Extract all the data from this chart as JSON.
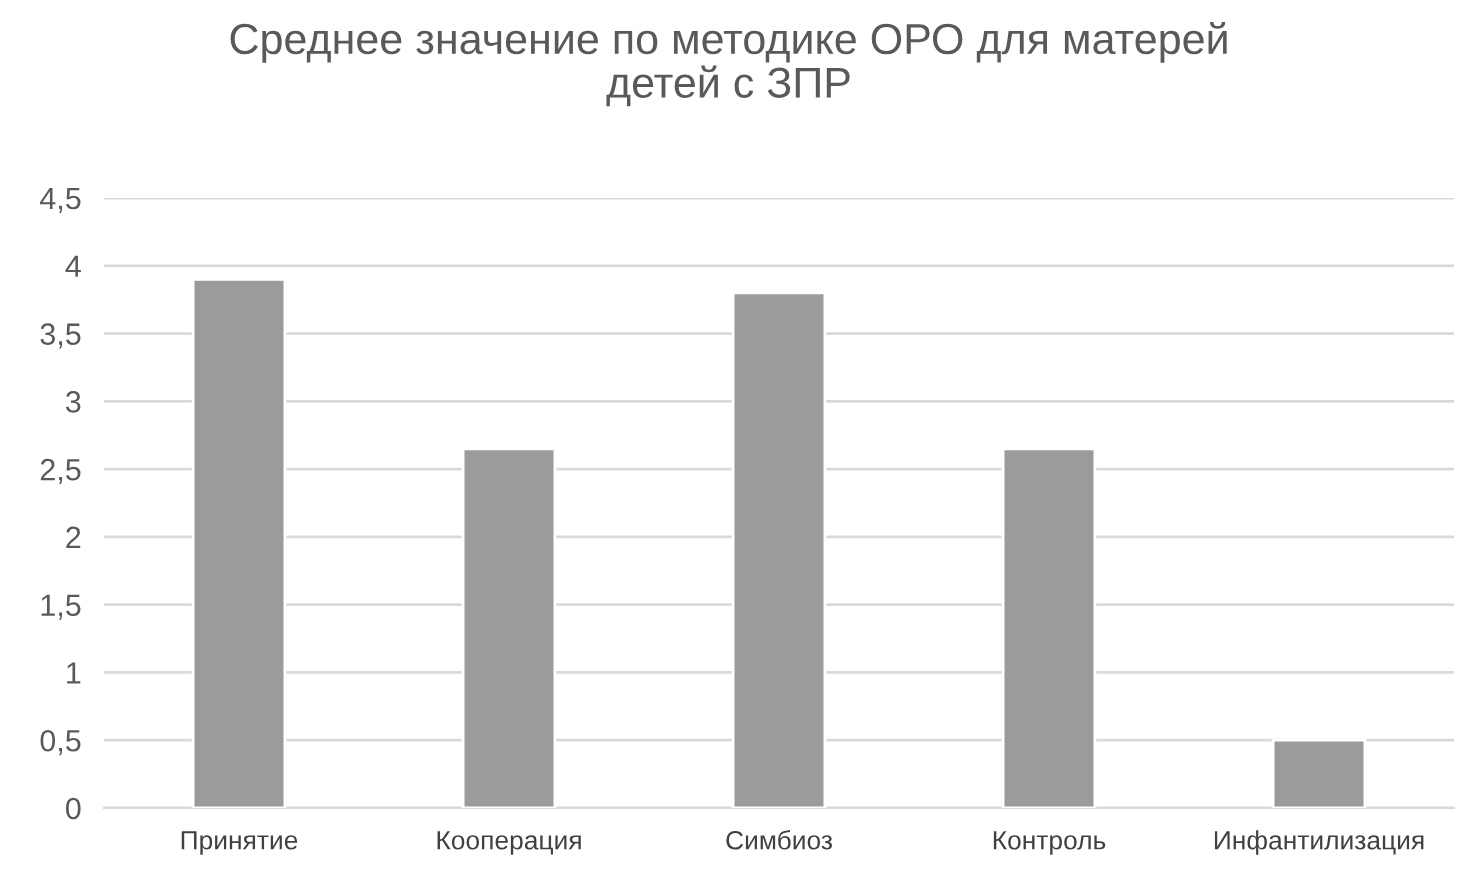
{
  "chart_data": {
    "type": "bar",
    "title": "Среднее значение по методике ОРО для матерей\nдетей с ЗПР",
    "categories": [
      "Принятие",
      "Кооперация",
      "Симбиоз",
      "Контроль",
      "Инфантилизация"
    ],
    "values": [
      3.9,
      2.65,
      3.8,
      2.65,
      0.5
    ],
    "color": "#9b9b9b",
    "ylim": [
      0,
      4.5
    ],
    "yticks": [
      0,
      {
        "value": 0.5,
        "label": "0,5"
      },
      1,
      {
        "value": 1.5,
        "label": "1,5"
      },
      2,
      {
        "value": 2.5,
        "label": "2,5"
      },
      3,
      {
        "value": 3.5,
        "label": "3,5"
      },
      4,
      {
        "value": 4.5,
        "label": "4,5"
      }
    ],
    "grid": "y",
    "legend": false
  }
}
